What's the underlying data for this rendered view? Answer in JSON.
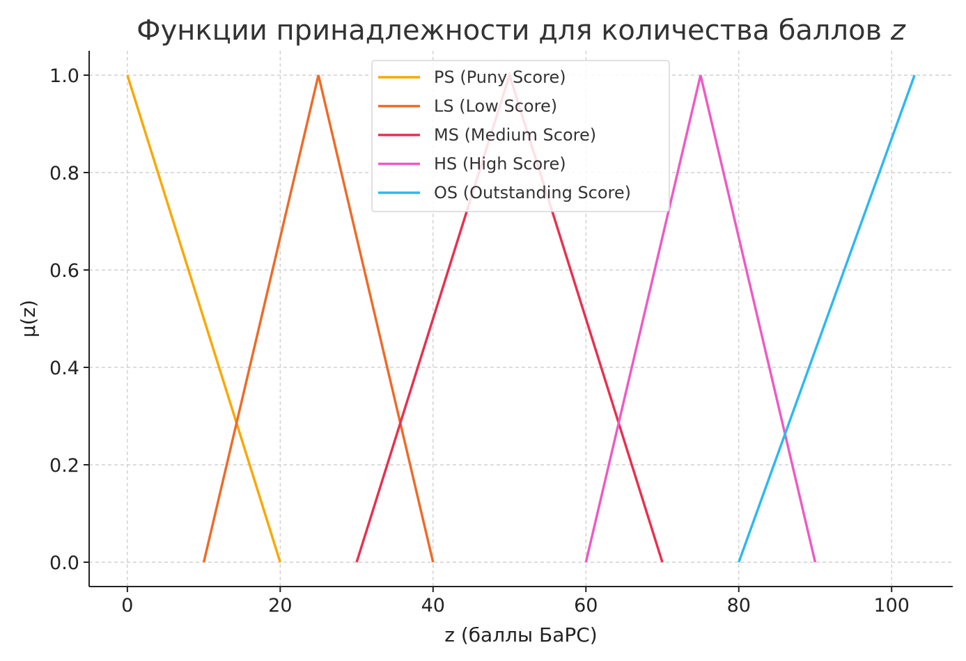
{
  "chart_data": {
    "type": "line",
    "title": "Функции принадлежности для количества баллов z",
    "title_main": "Функции принадлежности для количества баллов ",
    "title_var": "z",
    "xlabel": "z (баллы БаРС)",
    "ylabel": "μ(z)",
    "xlim": [
      -5,
      108
    ],
    "ylim": [
      -0.05,
      1.05
    ],
    "xticks": [
      0,
      20,
      40,
      60,
      80,
      100
    ],
    "xtick_labels": [
      "0",
      "20",
      "40",
      "60",
      "80",
      "100"
    ],
    "yticks": [
      0.0,
      0.2,
      0.4,
      0.6,
      0.8,
      1.0
    ],
    "ytick_labels": [
      "0.0",
      "0.2",
      "0.4",
      "0.6",
      "0.8",
      "1.0"
    ],
    "grid": true,
    "legend_position": "top-center",
    "series": [
      {
        "name": "PS (Puny Score)",
        "color": "#f9a800",
        "x": [
          0,
          20
        ],
        "y": [
          1,
          0
        ]
      },
      {
        "name": "LS (Low Score)",
        "color": "#ee6b26",
        "x": [
          10,
          25,
          40
        ],
        "y": [
          0,
          1,
          0
        ]
      },
      {
        "name": "MS (Medium Score)",
        "color": "#e8304f",
        "x": [
          30,
          50,
          70
        ],
        "y": [
          0,
          1,
          0
        ]
      },
      {
        "name": "HS (High Score)",
        "color": "#ef5ac3",
        "x": [
          60,
          75,
          90
        ],
        "y": [
          0,
          1,
          0
        ]
      },
      {
        "name": "OS (Outstanding Score)",
        "color": "#2db8f2",
        "x": [
          80,
          103
        ],
        "y": [
          0,
          1
        ]
      }
    ]
  }
}
